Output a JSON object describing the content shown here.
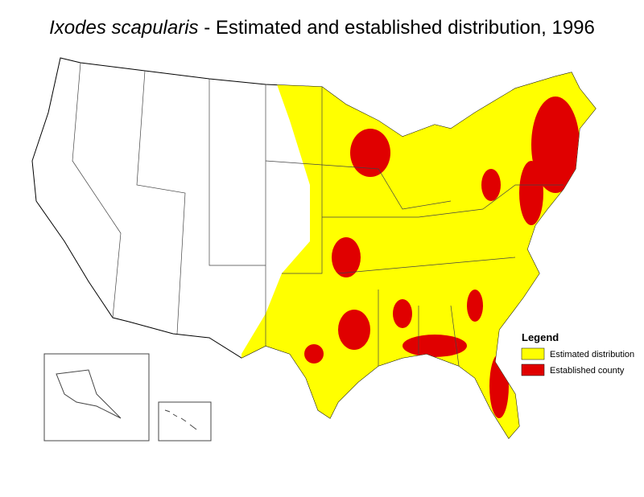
{
  "title": {
    "species": "Ixodes scapularis",
    "rest": " - Estimated and established distribution, 1996"
  },
  "legend": {
    "title": "Legend",
    "items": [
      {
        "label": "Estimated distribution",
        "color": "#ffff00"
      },
      {
        "label": "Established county",
        "color": "#e00000"
      }
    ]
  }
}
